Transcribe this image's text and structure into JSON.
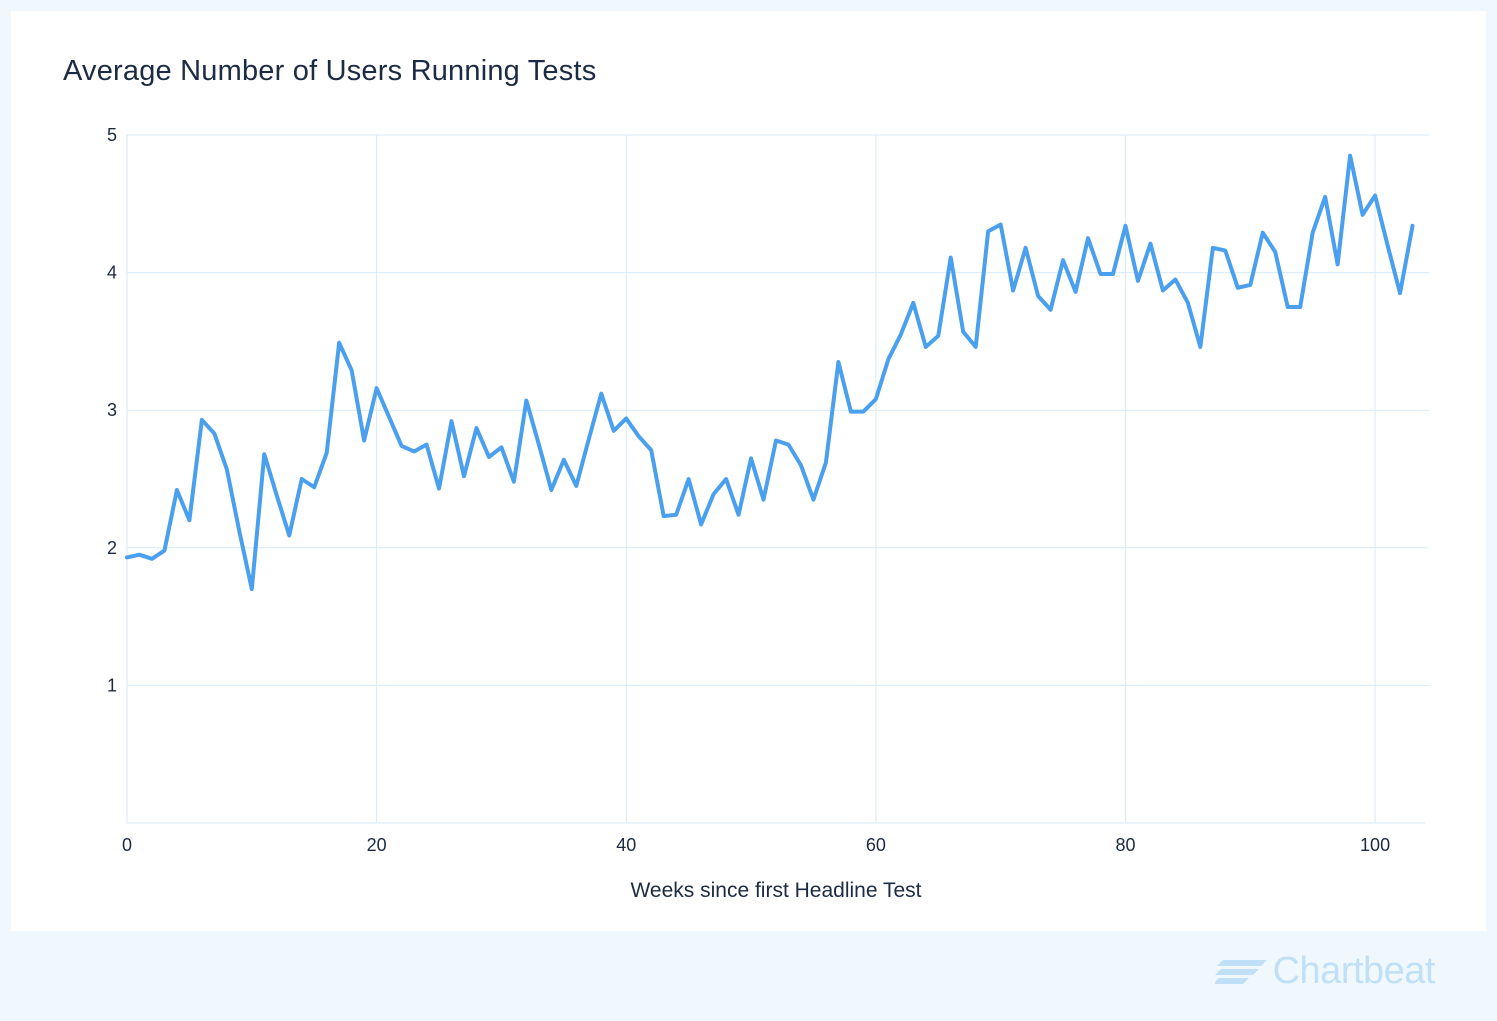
{
  "brand": {
    "name": "Chartbeat",
    "logo_icon": "chartbeat-logo-icon",
    "color": "#bfe0f6"
  },
  "colors": {
    "background": "#f1f8fd",
    "panel": "#ffffff",
    "line": "#4aa0ef",
    "grid": "#d7eaf7",
    "text": "#1c2b44"
  },
  "chart_data": {
    "type": "line",
    "title": "Average Number of Users Running Tests",
    "xlabel": "Weeks since first Headline Test",
    "ylabel": "",
    "xlim": [
      0,
      104
    ],
    "ylim": [
      0,
      5
    ],
    "x_ticks": [
      0,
      20,
      40,
      60,
      80,
      100
    ],
    "y_ticks": [
      1,
      2,
      3,
      4,
      5
    ],
    "grid": true,
    "legend": "none",
    "series": [
      {
        "values": [
          1.93,
          1.95,
          1.92,
          1.98,
          2.42,
          2.2,
          2.93,
          2.83,
          2.57,
          2.12,
          1.7,
          2.68,
          2.38,
          2.09,
          2.5,
          2.44,
          2.69,
          3.49,
          3.29,
          2.78,
          3.16,
          2.95,
          2.74,
          2.7,
          2.75,
          2.43,
          2.92,
          2.52,
          2.87,
          2.66,
          2.73,
          2.48,
          3.07,
          2.75,
          2.42,
          2.64,
          2.45,
          2.79,
          3.12,
          2.85,
          2.94,
          2.81,
          2.71,
          2.23,
          2.24,
          2.5,
          2.17,
          2.39,
          2.5,
          2.24,
          2.65,
          2.35,
          2.78,
          2.75,
          2.6,
          2.35,
          2.62,
          3.35,
          2.99,
          2.99,
          3.08,
          3.37,
          3.55,
          3.78,
          3.46,
          3.54,
          4.11,
          3.57,
          3.46,
          4.3,
          4.35,
          3.87,
          4.18,
          3.83,
          3.73,
          4.09,
          3.86,
          4.25,
          3.99,
          3.99,
          4.34,
          3.94,
          4.21,
          3.87,
          3.95,
          3.78,
          3.46,
          4.18,
          4.16,
          3.89,
          3.91,
          4.29,
          4.15,
          3.75,
          3.75,
          4.29,
          4.55,
          4.06,
          4.85,
          4.42,
          4.56,
          4.2,
          3.85,
          4.34
        ]
      }
    ]
  }
}
